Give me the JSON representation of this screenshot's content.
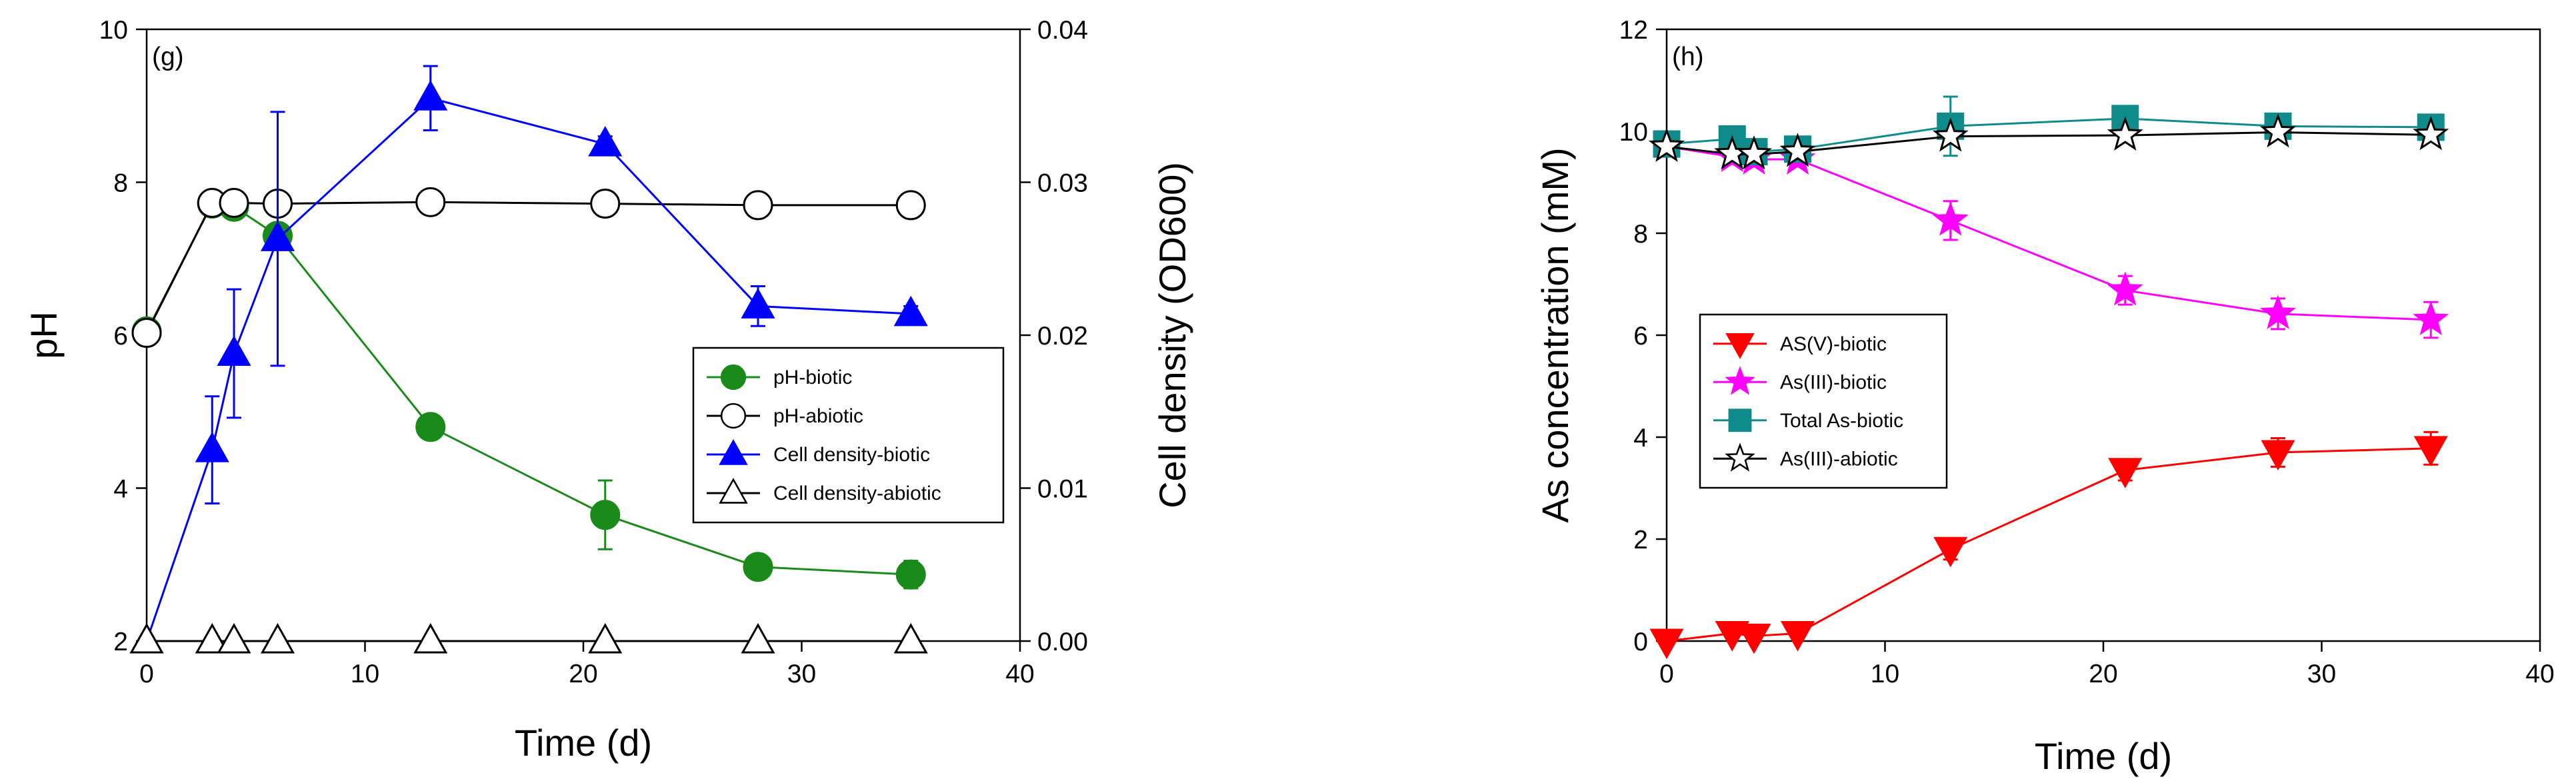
{
  "chart_data": [
    {
      "type": "line",
      "panel_label": "(g)",
      "xlabel": "Time (d)",
      "ylabel": "pH",
      "y2label": "Cell density (OD600)",
      "xlim": [
        0,
        40
      ],
      "ylim": [
        2,
        10
      ],
      "y2lim": [
        0,
        0.04
      ],
      "x_ticks": [
        "0",
        "10",
        "20",
        "30",
        "40"
      ],
      "y_ticks": [
        "2",
        "4",
        "6",
        "8",
        "10"
      ],
      "y2_ticks": [
        "0.00",
        "0.01",
        "0.02",
        "0.03",
        "0.04"
      ],
      "legend_position": "center-right",
      "series": [
        {
          "name": "pH-biotic",
          "axis": "left",
          "marker": "circle",
          "filled": true,
          "color": "#1a8a1a",
          "x": [
            0,
            3,
            4,
            6,
            13,
            21,
            28,
            35
          ],
          "y": [
            6.05,
            7.72,
            7.68,
            7.3,
            4.8,
            3.65,
            2.97,
            2.87
          ],
          "err": [
            0,
            0,
            0,
            0,
            0.15,
            0.45,
            0,
            0.18
          ]
        },
        {
          "name": "pH-abiotic",
          "axis": "left",
          "marker": "circle",
          "filled": false,
          "color": "#000000",
          "x": [
            0,
            3,
            4,
            6,
            13,
            21,
            28,
            35
          ],
          "y": [
            6.03,
            7.73,
            7.73,
            7.72,
            7.74,
            7.72,
            7.7,
            7.7
          ],
          "err": [
            0,
            0,
            0,
            0,
            0,
            0,
            0,
            0
          ]
        },
        {
          "name": "Cell density-biotic",
          "axis": "right",
          "marker": "triangle-up",
          "filled": true,
          "color": "#0000ff",
          "x": [
            0,
            3,
            4,
            6,
            13,
            21,
            28,
            35
          ],
          "y": [
            0.0,
            0.0125,
            0.0188,
            0.0263,
            0.0355,
            0.0325,
            0.0219,
            0.0214
          ],
          "err": [
            0,
            0.0035,
            0.0042,
            0.0083,
            0.0021,
            0.0005,
            0.0013,
            0.0005
          ]
        },
        {
          "name": "Cell density-abiotic",
          "axis": "right",
          "marker": "triangle-up",
          "filled": false,
          "color": "#000000",
          "x": [
            0,
            3,
            4,
            6,
            13,
            21,
            28,
            35
          ],
          "y": [
            0,
            0,
            0,
            0,
            0,
            0,
            0,
            0
          ],
          "err": [
            0,
            0,
            0,
            0,
            0,
            0,
            0,
            0
          ]
        }
      ]
    },
    {
      "type": "line",
      "panel_label": "(h)",
      "xlabel": "Time (d)",
      "ylabel": "As concentration (mM)",
      "xlim": [
        0,
        40
      ],
      "ylim": [
        0,
        12
      ],
      "x_ticks": [
        "0",
        "10",
        "20",
        "30",
        "40"
      ],
      "y_ticks": [
        "0",
        "2",
        "4",
        "6",
        "8",
        "10",
        "12"
      ],
      "legend_position": "center-left",
      "series": [
        {
          "name": "AS(V)-biotic",
          "marker": "triangle-down",
          "filled": true,
          "color": "#ff0000",
          "x": [
            0,
            3,
            4,
            6,
            13,
            21,
            28,
            35
          ],
          "y": [
            0.0,
            0.15,
            0.1,
            0.15,
            1.8,
            3.35,
            3.7,
            3.78
          ],
          "err": [
            0,
            0,
            0,
            0,
            0.2,
            0.2,
            0.28,
            0.32
          ]
        },
        {
          "name": "As(III)-biotic",
          "marker": "star",
          "filled": true,
          "color": "#ff00ff",
          "x": [
            0,
            3,
            4,
            6,
            13,
            21,
            28,
            35
          ],
          "y": [
            9.7,
            9.5,
            9.45,
            9.45,
            8.25,
            6.88,
            6.42,
            6.3
          ],
          "err": [
            0,
            0,
            0,
            0,
            0.38,
            0.28,
            0.3,
            0.35
          ]
        },
        {
          "name": "Total As-biotic",
          "marker": "square",
          "filled": true,
          "color": "#108b8b",
          "x": [
            0,
            3,
            4,
            6,
            13,
            21,
            28,
            35
          ],
          "y": [
            9.75,
            9.85,
            9.6,
            9.65,
            10.1,
            10.25,
            10.1,
            10.08
          ],
          "err": [
            0,
            0,
            0,
            0,
            0.58,
            0,
            0,
            0
          ]
        },
        {
          "name": "As(III)-abiotic",
          "marker": "star",
          "filled": false,
          "color": "#000000",
          "x": [
            0,
            3,
            4,
            6,
            13,
            21,
            28,
            35
          ],
          "y": [
            9.7,
            9.55,
            9.55,
            9.6,
            9.9,
            9.92,
            9.98,
            9.93
          ],
          "err": [
            0,
            0,
            0,
            0,
            0,
            0,
            0,
            0
          ]
        }
      ]
    }
  ]
}
